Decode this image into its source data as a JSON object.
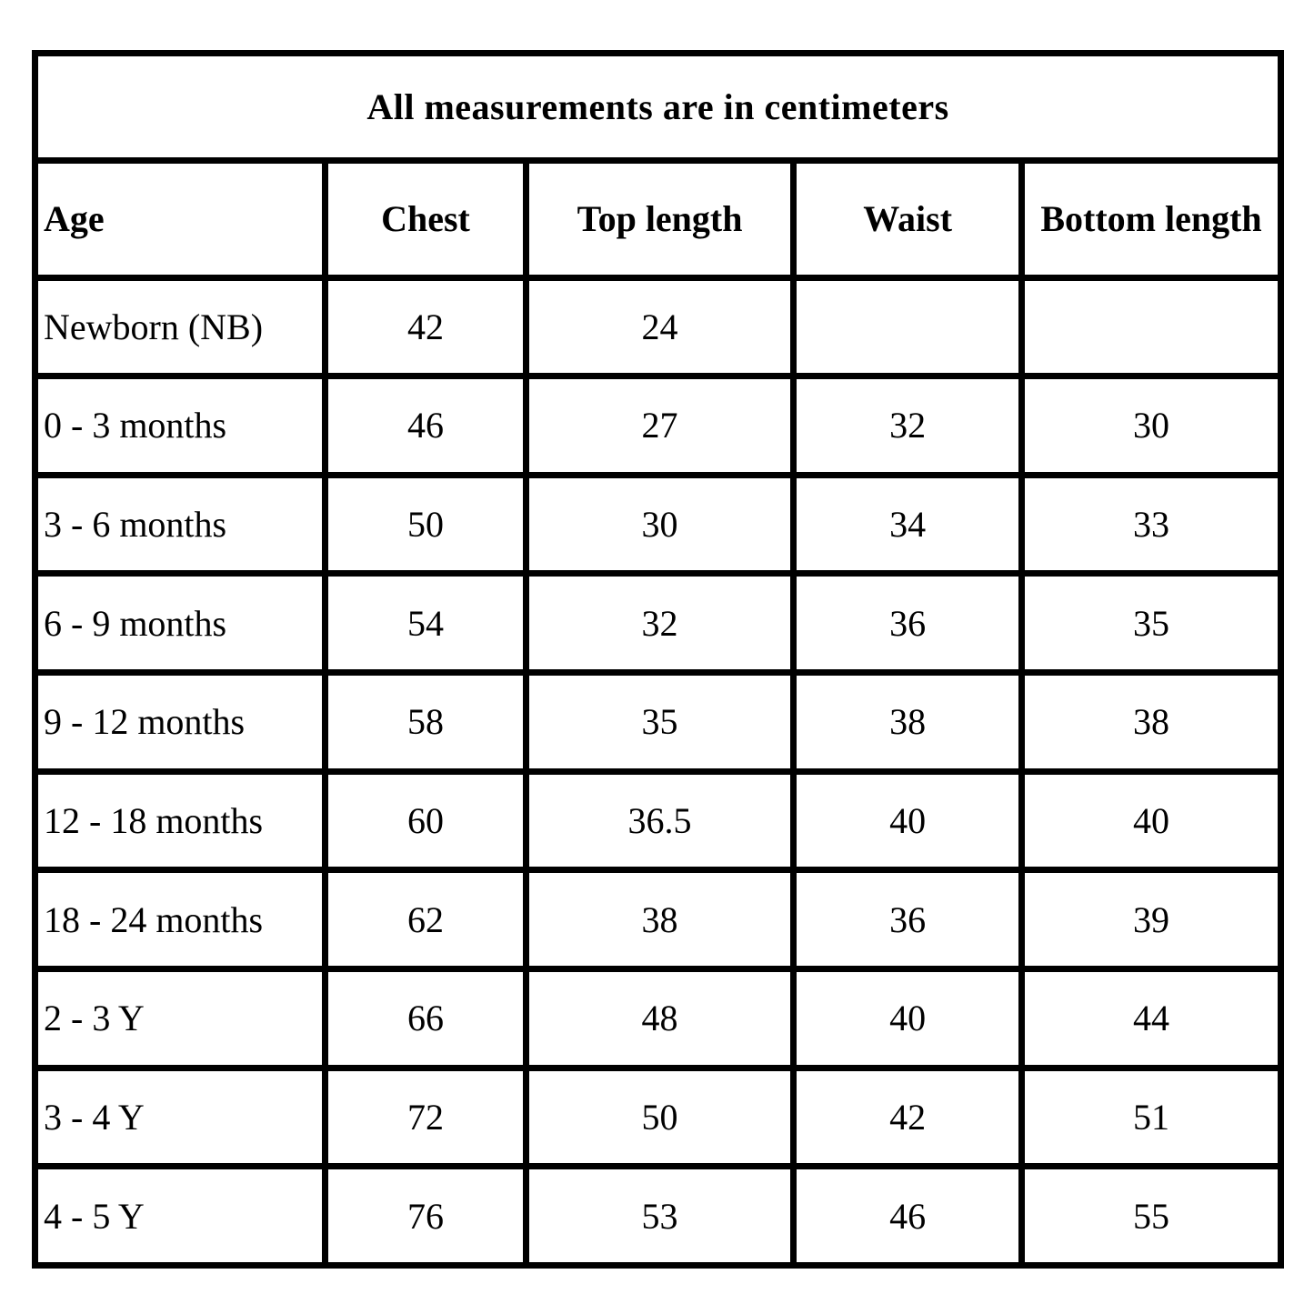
{
  "colors": {
    "border": "#000000",
    "background": "#ffffff",
    "text": "#000000"
  },
  "table": {
    "title": "All measurements are in centimeters",
    "columns": [
      "Age",
      "Chest",
      "Top length",
      "Waist",
      "Bottom length"
    ],
    "rows": [
      {
        "age": "Newborn (NB)",
        "values": [
          "42",
          "24",
          "",
          ""
        ]
      },
      {
        "age": "0 - 3 months",
        "values": [
          "46",
          "27",
          "32",
          "30"
        ]
      },
      {
        "age": "3 - 6 months",
        "values": [
          "50",
          "30",
          "34",
          "33"
        ]
      },
      {
        "age": "6 - 9 months",
        "values": [
          "54",
          "32",
          "36",
          "35"
        ]
      },
      {
        "age": "9 - 12 months",
        "values": [
          "58",
          "35",
          "38",
          "38"
        ]
      },
      {
        "age": "12 - 18 months",
        "values": [
          "60",
          "36.5",
          "40",
          "40"
        ]
      },
      {
        "age": "18 - 24 months",
        "values": [
          "62",
          "38",
          "36",
          "39"
        ]
      },
      {
        "age": "2 - 3 Y",
        "values": [
          "66",
          "48",
          "40",
          "44"
        ]
      },
      {
        "age": "3 - 4 Y",
        "values": [
          "72",
          "50",
          "42",
          "51"
        ]
      },
      {
        "age": "4 - 5 Y",
        "values": [
          "76",
          "53",
          "46",
          "55"
        ]
      }
    ]
  }
}
